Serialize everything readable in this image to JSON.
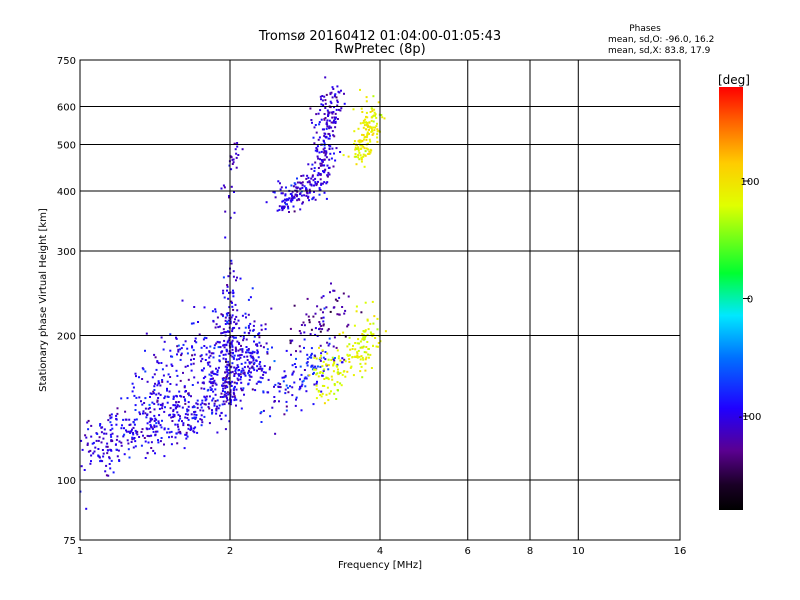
{
  "chart_data": {
    "type": "scatter",
    "title": "Tromsø 20160412 01:04:00-01:05:43",
    "subtitle": "RwPretec (8p)",
    "phase_info": {
      "title": "Phases",
      "line1": "mean, sd,O: -96.0, 16.2",
      "line2": "mean, sd,X: 83.8, 17.9"
    },
    "xlabel": "Frequency [MHz]",
    "ylabel": "Stationary phase Virtual Height [km]",
    "x_scale": "log",
    "y_scale": "log",
    "xlim": [
      1,
      16
    ],
    "ylim": [
      75,
      750
    ],
    "x_ticks": [
      1,
      2,
      4,
      6,
      8,
      10,
      16
    ],
    "x_tick_labels": [
      "1",
      "2",
      "4",
      "6",
      "8",
      "10",
      "16"
    ],
    "x_grid": [
      1,
      2,
      4,
      6,
      8,
      10,
      16
    ],
    "y_ticks": [
      75,
      100,
      200,
      300,
      400,
      500,
      600,
      750
    ],
    "y_tick_labels": [
      "75",
      "100",
      "200",
      "300",
      "400",
      "500",
      "600",
      "750"
    ],
    "y_grid": [
      100,
      200,
      300,
      400,
      500,
      600
    ],
    "grid": true,
    "colorbar": {
      "label": "[deg]",
      "range": [
        -180,
        180
      ],
      "ticks": [
        100,
        0,
        -100
      ],
      "tick_labels": [
        "100",
        "0",
        "-100"
      ]
    },
    "clusters": [
      {
        "id": "o-lower",
        "points": [
          [
            1.05,
            112
          ],
          [
            1.12,
            119
          ],
          [
            1.2,
            124
          ],
          [
            1.3,
            128
          ],
          [
            1.4,
            131
          ],
          [
            1.5,
            134
          ],
          [
            1.6,
            137
          ],
          [
            1.7,
            141
          ],
          [
            1.8,
            146
          ],
          [
            1.9,
            153
          ],
          [
            2.0,
            160
          ],
          [
            2.1,
            168
          ],
          [
            2.2,
            178
          ],
          [
            2.3,
            190
          ]
        ],
        "spread": [
          0.04,
          0.07
        ],
        "count": 650,
        "phase": -100,
        "phase_sd": 14
      },
      {
        "id": "o-lower-upper",
        "points": [
          [
            1.3,
            150
          ],
          [
            1.45,
            160
          ],
          [
            1.6,
            175
          ],
          [
            1.75,
            185
          ],
          [
            1.9,
            195
          ],
          [
            2.0,
            210
          ],
          [
            2.1,
            200
          ]
        ],
        "spread": [
          0.06,
          0.1
        ],
        "count": 260,
        "phase": -98,
        "phase_sd": 14
      },
      {
        "id": "o-lower-col",
        "points": [
          [
            1.98,
            150
          ],
          [
            1.98,
            190
          ],
          [
            2.0,
            230
          ],
          [
            2.02,
            270
          ]
        ],
        "spread": [
          0.02,
          0.08
        ],
        "count": 90,
        "phase": -105,
        "phase_sd": 12
      },
      {
        "id": "o-lower-mid",
        "points": [
          [
            2.3,
            150
          ],
          [
            2.5,
            155
          ],
          [
            2.7,
            160
          ],
          [
            2.9,
            170
          ],
          [
            3.0,
            180
          ],
          [
            3.2,
            190
          ]
        ],
        "spread": [
          0.04,
          0.08
        ],
        "count": 150,
        "phase": -90,
        "phase_sd": 18
      },
      {
        "id": "o-lower-top",
        "points": [
          [
            2.7,
            205
          ],
          [
            2.9,
            210
          ],
          [
            3.05,
            215
          ],
          [
            3.2,
            220
          ],
          [
            3.3,
            225
          ]
        ],
        "spread": [
          0.04,
          0.06
        ],
        "count": 60,
        "phase": -130,
        "phase_sd": 12
      },
      {
        "id": "x-lower",
        "points": [
          [
            3.0,
            160
          ],
          [
            3.2,
            165
          ],
          [
            3.4,
            172
          ],
          [
            3.6,
            182
          ],
          [
            3.75,
            195
          ],
          [
            3.9,
            210
          ]
        ],
        "spread": [
          0.03,
          0.06
        ],
        "count": 180,
        "phase": 85,
        "phase_sd": 10
      },
      {
        "id": "o-upper",
        "points": [
          [
            2.5,
            380
          ],
          [
            2.65,
            390
          ],
          [
            2.8,
            400
          ],
          [
            2.95,
            420
          ],
          [
            3.05,
            450
          ],
          [
            3.1,
            490
          ],
          [
            3.15,
            540
          ],
          [
            3.2,
            590
          ],
          [
            3.25,
            630
          ]
        ],
        "spread": [
          0.03,
          0.04
        ],
        "count": 330,
        "phase": -105,
        "phase_sd": 14
      },
      {
        "id": "o-upper-col",
        "points": [
          [
            2.0,
            440
          ],
          [
            2.03,
            470
          ],
          [
            2.05,
            500
          ],
          [
            1.97,
            365
          ]
        ],
        "spread": [
          0.015,
          0.03
        ],
        "count": 30,
        "phase": -110,
        "phase_sd": 8
      },
      {
        "id": "x-upper",
        "points": [
          [
            3.6,
            470
          ],
          [
            3.7,
            500
          ],
          [
            3.8,
            540
          ],
          [
            3.85,
            590
          ]
        ],
        "spread": [
          0.025,
          0.04
        ],
        "count": 140,
        "phase": 90,
        "phase_sd": 10
      }
    ]
  }
}
